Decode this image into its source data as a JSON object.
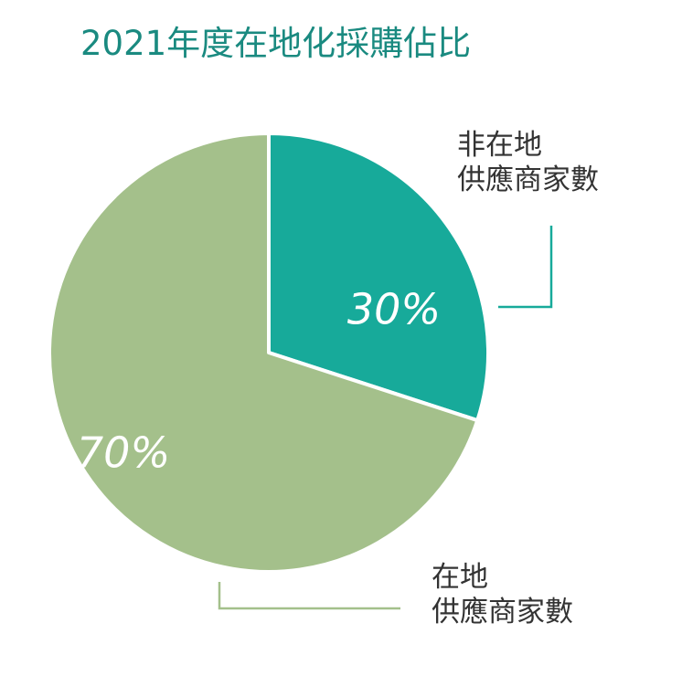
{
  "chart_data": {
    "type": "pie",
    "title": "2021年度在地化採購佔比",
    "title_color": "#1a8a80",
    "value_label_color": "#ffffff",
    "slices": [
      {
        "value": 30,
        "value_label": "30%",
        "label_line1": "非在地",
        "label_line2": "供應商家數",
        "color": "#17aa9a"
      },
      {
        "value": 70,
        "value_label": "70%",
        "label_line1": "在地",
        "label_line2": "供應商家數",
        "color": "#a4c08b"
      }
    ]
  }
}
